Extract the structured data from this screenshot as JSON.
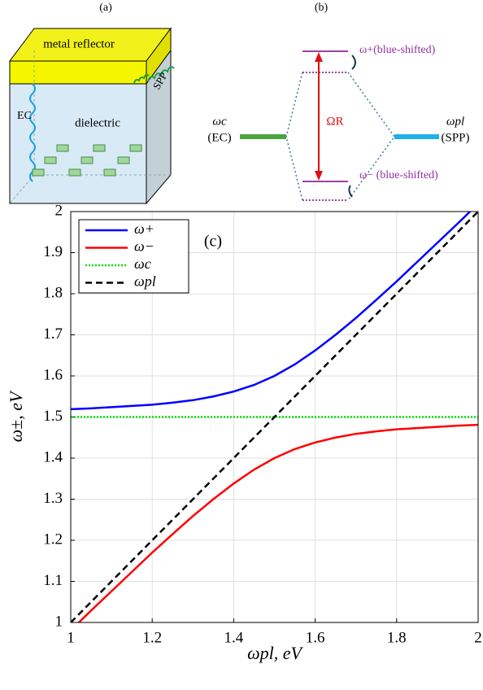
{
  "panel_a": {
    "label": "(a)",
    "top": "metal reflector",
    "body": "dielectric",
    "left_wave": "EC",
    "side_wave": "SPP"
  },
  "panel_b": {
    "label": "(b)",
    "cavity_symbol": "ωc",
    "cavity_name": "(EC)",
    "plasmon_symbol": "ωpl",
    "plasmon_name": "(SPP)",
    "rabi": "ΩR",
    "upper": "ω+(blue-shifted)",
    "lower": "ω− (blue-shifted)"
  },
  "chart_data": {
    "type": "line",
    "annotation": "(c)",
    "xlabel": "ωpl, eV",
    "ylabel": "ω±, eV",
    "x": [
      1.0,
      1.05,
      1.1,
      1.15,
      1.2,
      1.25,
      1.3,
      1.35,
      1.4,
      1.45,
      1.5,
      1.55,
      1.6,
      1.65,
      1.7,
      1.75,
      1.8,
      1.85,
      1.9,
      1.95,
      2.0
    ],
    "series": [
      {
        "name": "ω+",
        "color": "#0000ff",
        "style": "solid",
        "values": [
          1.519,
          1.521,
          1.524,
          1.527,
          1.53,
          1.535,
          1.541,
          1.55,
          1.562,
          1.578,
          1.6,
          1.628,
          1.662,
          1.7,
          1.741,
          1.785,
          1.83,
          1.877,
          1.924,
          1.971,
          2.019
        ]
      },
      {
        "name": "ω−",
        "color": "#ff0000",
        "style": "solid",
        "values": [
          0.981,
          1.029,
          1.076,
          1.123,
          1.17,
          1.215,
          1.259,
          1.3,
          1.338,
          1.372,
          1.4,
          1.422,
          1.438,
          1.45,
          1.459,
          1.465,
          1.47,
          1.473,
          1.476,
          1.479,
          1.481
        ]
      },
      {
        "name": "ωc",
        "color": "#00e000",
        "style": "dotted",
        "values": [
          1.5,
          1.5,
          1.5,
          1.5,
          1.5,
          1.5,
          1.5,
          1.5,
          1.5,
          1.5,
          1.5,
          1.5,
          1.5,
          1.5,
          1.5,
          1.5,
          1.5,
          1.5,
          1.5,
          1.5,
          1.5
        ]
      },
      {
        "name": "ωpl",
        "color": "#000000",
        "style": "dashed",
        "values": [
          1.0,
          1.05,
          1.1,
          1.15,
          1.2,
          1.25,
          1.3,
          1.35,
          1.4,
          1.45,
          1.5,
          1.55,
          1.6,
          1.65,
          1.7,
          1.75,
          1.8,
          1.85,
          1.9,
          1.95,
          2.0
        ]
      }
    ],
    "xlim": [
      1,
      2
    ],
    "ylim": [
      1,
      2
    ],
    "xticks": [
      1,
      1.2,
      1.4,
      1.6,
      1.8,
      2
    ],
    "yticks": [
      1,
      1.1,
      1.2,
      1.3,
      1.4,
      1.5,
      1.6,
      1.7,
      1.8,
      1.9,
      2
    ],
    "grid": true,
    "legend": "upper left"
  }
}
